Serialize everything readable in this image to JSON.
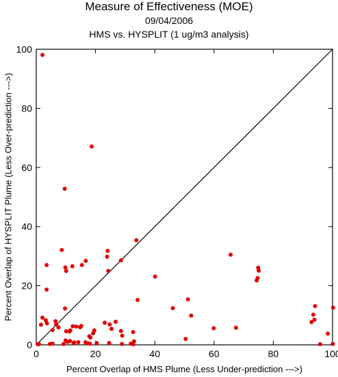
{
  "header": {
    "title": "Measure of Effectiveness (MOE)",
    "date": "09/04/2006",
    "subtitle": "HMS vs. HYSPLIT  (1 ug/m3 analysis)"
  },
  "colors": {
    "points": "#e00000",
    "axes": "#000000",
    "diagonal": "#000000"
  },
  "chart_data": {
    "type": "scatter",
    "title": "Measure of Effectiveness (MOE)",
    "subtitle": "09/04/2006 — HMS vs. HYSPLIT  (1 ug/m3 analysis)",
    "xlabel": "Percent Overlap of HMS Plume (Less Under-prediction --->)",
    "ylabel": "Percent Overlap of HYSPLIT Plume (Less Over-prediction --->)",
    "xlim": [
      0,
      100
    ],
    "ylim": [
      0,
      100
    ],
    "xticks": [
      "0",
      "20",
      "40",
      "60",
      "80",
      "100"
    ],
    "yticks": [
      "0",
      "20",
      "40",
      "60",
      "80",
      "100"
    ],
    "grid": false,
    "reference_line": "y = x",
    "points": [
      [
        2.1,
        98.1
      ],
      [
        18.7,
        67.1
      ],
      [
        9.6,
        52.8
      ],
      [
        65.6,
        30.5
      ],
      [
        74.9,
        26.1
      ],
      [
        75.1,
        25.1
      ],
      [
        74.4,
        21.8
      ],
      [
        74.7,
        22.6
      ],
      [
        40.1,
        23.1
      ],
      [
        33.8,
        35.4
      ],
      [
        24.1,
        31.8
      ],
      [
        23.9,
        29.8
      ],
      [
        28.6,
        28.6
      ],
      [
        8.6,
        32.1
      ],
      [
        16.7,
        28.4
      ],
      [
        3.5,
        27.0
      ],
      [
        9.8,
        26.2
      ],
      [
        10.1,
        25.0
      ],
      [
        12.2,
        26.6
      ],
      [
        15.4,
        27.0
      ],
      [
        24.3,
        25.0
      ],
      [
        3.5,
        18.7
      ],
      [
        9.7,
        12.3
      ],
      [
        34.2,
        15.2
      ],
      [
        46.1,
        12.4
      ],
      [
        51.2,
        15.4
      ],
      [
        52.3,
        9.9
      ],
      [
        59.9,
        5.6
      ],
      [
        67.4,
        5.8
      ],
      [
        50.4,
        2.0
      ],
      [
        93.5,
        10.2
      ],
      [
        94.1,
        13.1
      ],
      [
        93.9,
        8.5
      ],
      [
        92.9,
        7.7
      ],
      [
        95.8,
        0.2
      ],
      [
        98.4,
        3.8
      ],
      [
        100.2,
        12.6
      ],
      [
        100.1,
        0.3
      ],
      [
        1.6,
        6.8
      ],
      [
        2.1,
        9.2
      ],
      [
        3.2,
        8.3
      ],
      [
        3.6,
        7.3
      ],
      [
        6.5,
        8.0
      ],
      [
        6.7,
        6.9
      ],
      [
        7.5,
        5.9
      ],
      [
        5.5,
        5.0
      ],
      [
        10.1,
        4.6
      ],
      [
        11.2,
        4.5
      ],
      [
        11.5,
        4.9
      ],
      [
        12.3,
        6.3
      ],
      [
        13.5,
        6.2
      ],
      [
        14.8,
        6.0
      ],
      [
        15.2,
        6.4
      ],
      [
        17.9,
        2.9
      ],
      [
        19.2,
        3.9
      ],
      [
        19.6,
        4.9
      ],
      [
        23.1,
        7.5
      ],
      [
        24.8,
        6.9
      ],
      [
        26.8,
        7.8
      ],
      [
        25.4,
        5.4
      ],
      [
        28.6,
        4.7
      ],
      [
        29.0,
        3.1
      ],
      [
        32.7,
        4.3
      ],
      [
        33.0,
        1.2
      ],
      [
        31.9,
        0.4
      ],
      [
        32.7,
        0.2
      ],
      [
        28.9,
        0.3
      ],
      [
        24.6,
        0.6
      ],
      [
        20.4,
        0.6
      ],
      [
        18.1,
        0.4
      ],
      [
        17.4,
        0.5
      ],
      [
        16.6,
        0.9
      ],
      [
        12.6,
        0.6
      ],
      [
        11.4,
        1.3
      ],
      [
        9.9,
        1.5
      ],
      [
        9.2,
        0.3
      ],
      [
        5.5,
        0.4
      ],
      [
        4.6,
        0.3
      ],
      [
        0.9,
        0.3
      ],
      [
        0.5,
        0.2
      ],
      [
        14.2,
        0.9
      ],
      [
        18.3,
        2.5
      ],
      [
        12.8,
        0.8
      ],
      [
        10.5,
        1.0
      ]
    ]
  }
}
